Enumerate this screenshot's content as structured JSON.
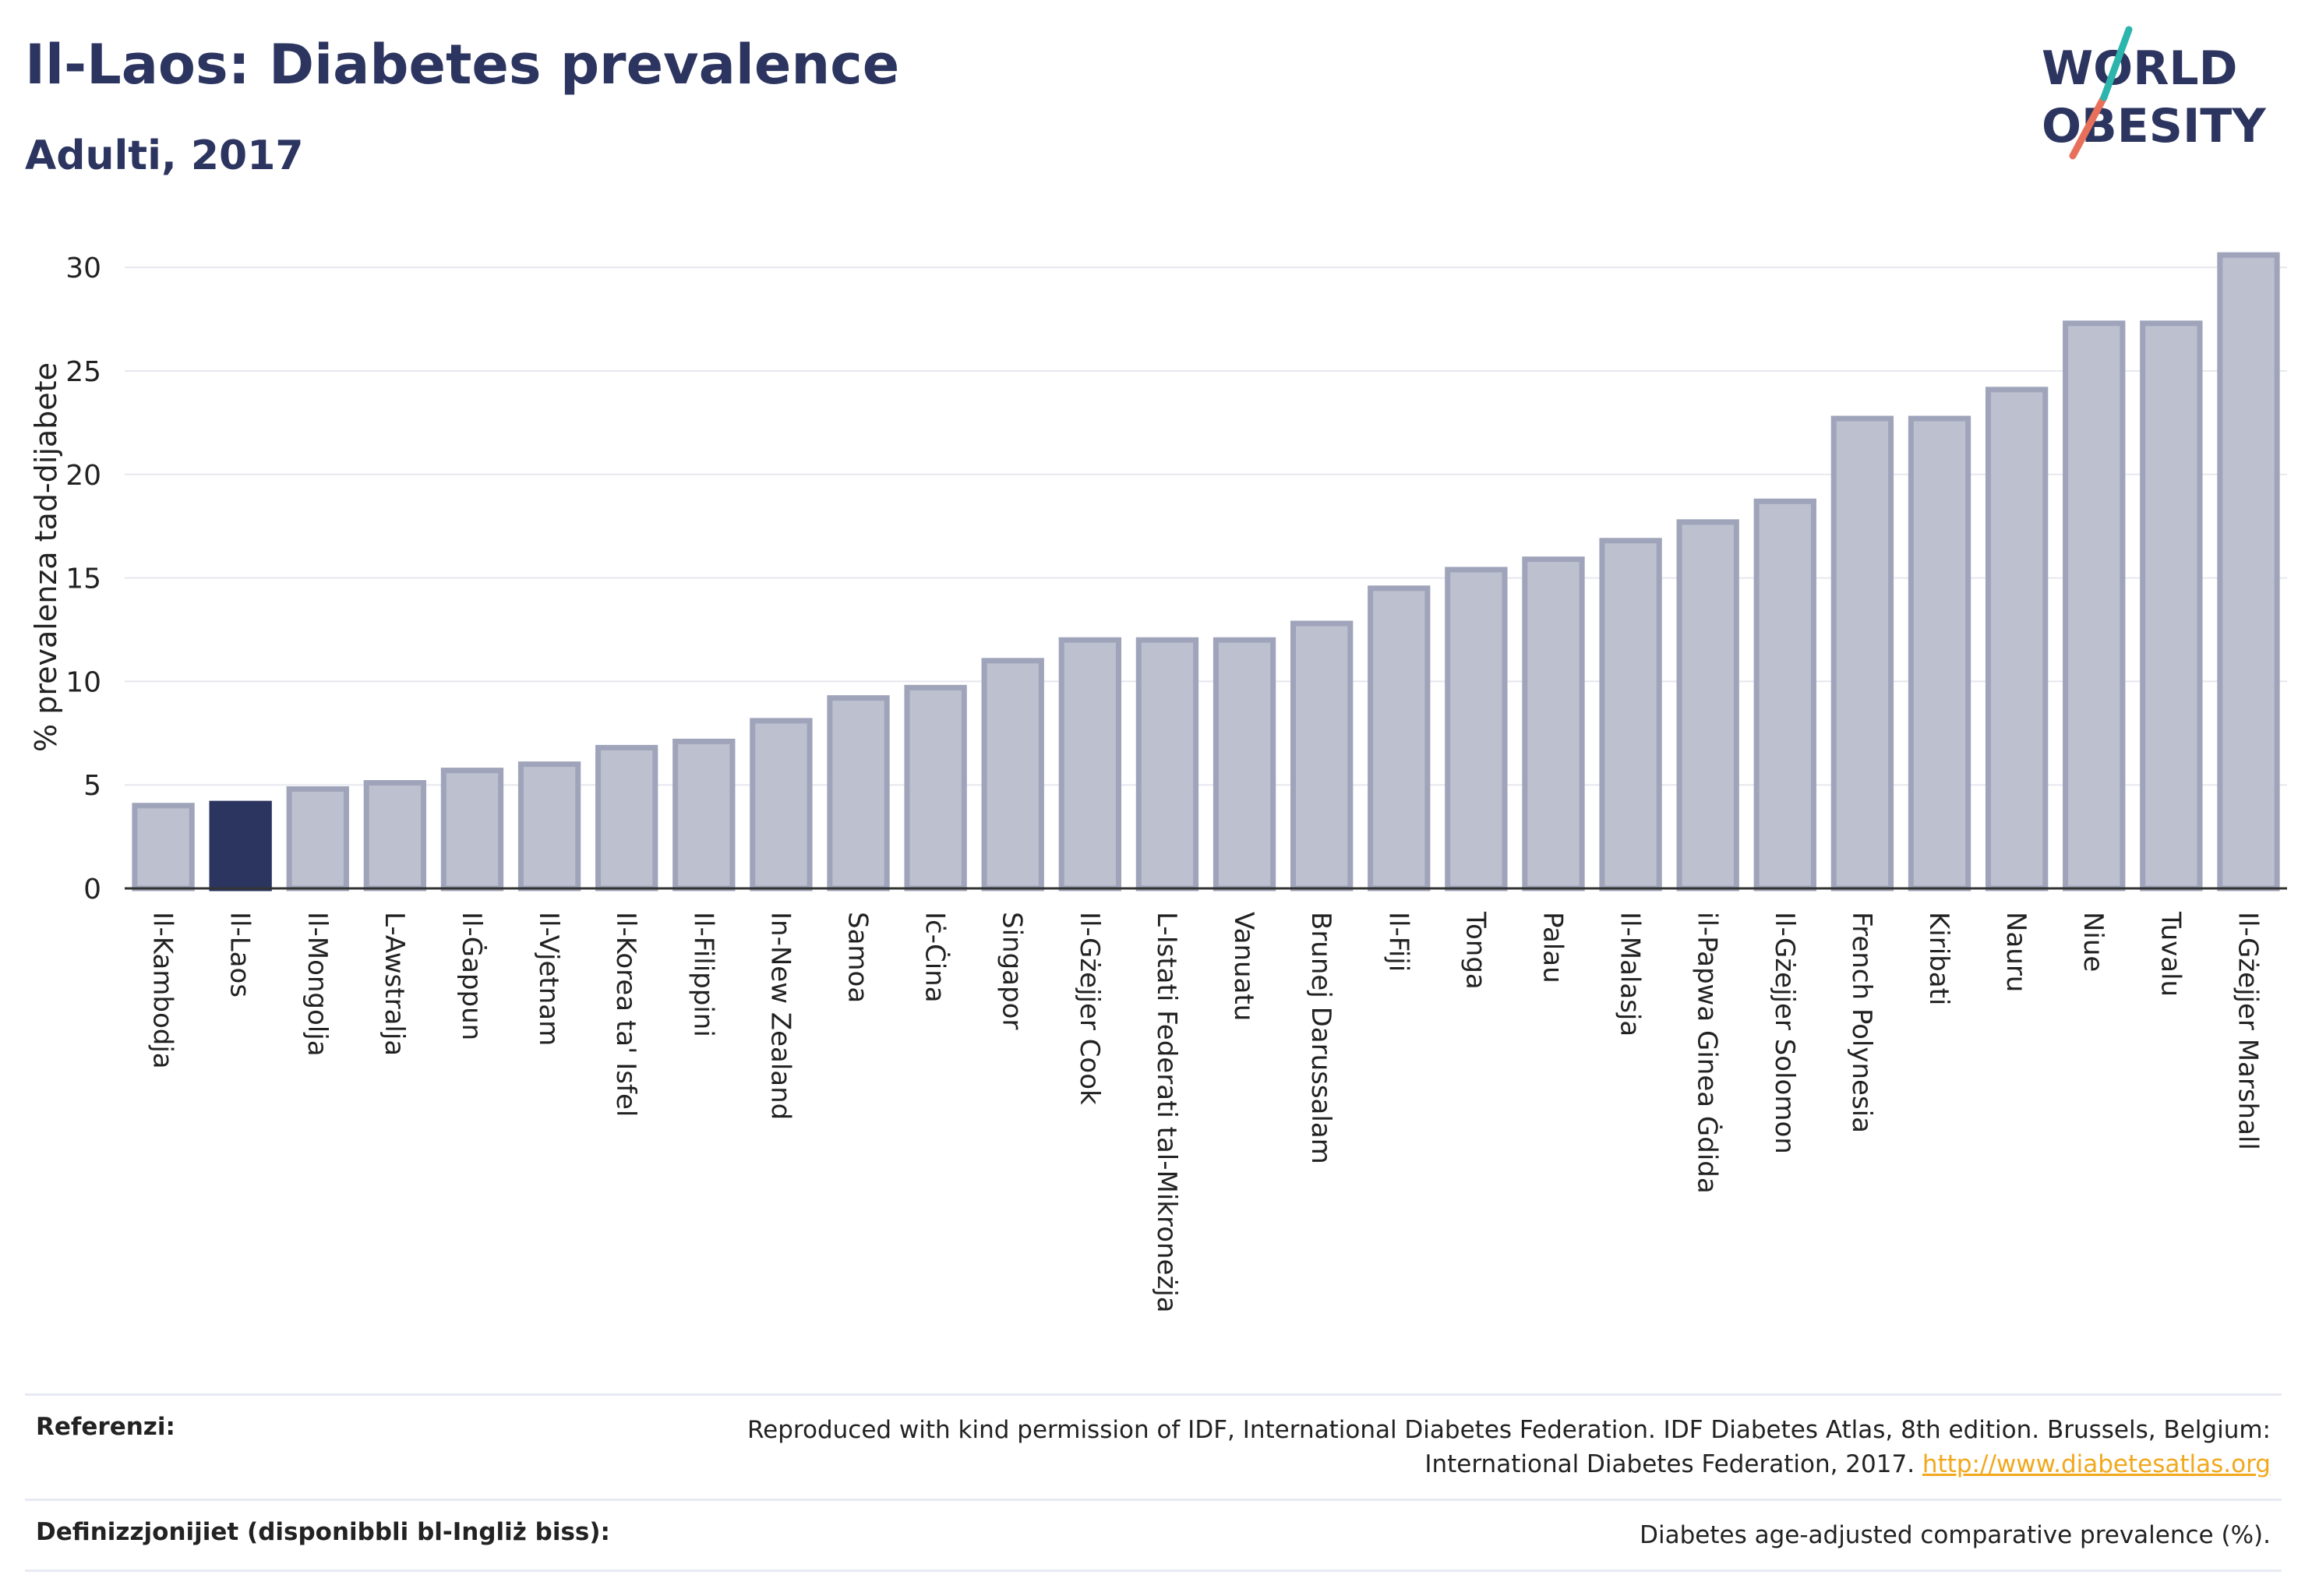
{
  "header": {
    "title": "Il-Laos: Diabetes prevalence",
    "subtitle": "Adulti, 2017"
  },
  "logo": {
    "line1": "WORLD",
    "line2": "OBESITY"
  },
  "colors": {
    "bar": "#bcc0cf",
    "bar_stroke": "#9fa4ba",
    "highlight": "#2c3560",
    "grid": "#e6e8ef",
    "axis": "#333333"
  },
  "chart_data": {
    "type": "bar",
    "title": "Il-Laos: Diabetes prevalence",
    "subtitle": "Adulti, 2017",
    "ylabel": "% prevalenza tad-dijabete",
    "xlabel": "",
    "ylim": [
      0,
      32
    ],
    "yticks": [
      0,
      5,
      10,
      15,
      20,
      25,
      30
    ],
    "grid": true,
    "highlight": "Il-Laos",
    "categories": [
      "Il-Kambodja",
      "Il-Laos",
      "Il-Mongolja",
      "L-Awstralja",
      "Il-Ġappun",
      "Il-Vjetnam",
      "Il-Korea ta' Isfel",
      "Il-Filippini",
      "In-New Zealand",
      "Samoa",
      "Iċ-Ċina",
      "Singapor",
      "Il-Gżejjer Cook",
      "L-Istati Federati tal-Mikroneżja",
      "Vanuatu",
      "Brunej Darussalam",
      "Il-Fiji",
      "Tonga",
      "Palau",
      "Il-Malasja",
      "il-Papwa Ginea Ġdida",
      "Il-Gżejjer Solomon",
      "French Polynesia",
      "Kiribati",
      "Nauru",
      "Niue",
      "Tuvalu",
      "Il-Gżejjer Marshall"
    ],
    "values": [
      4.0,
      4.1,
      4.8,
      5.1,
      5.7,
      6.0,
      6.8,
      7.1,
      8.1,
      9.2,
      9.7,
      11.0,
      12.0,
      12.0,
      12.0,
      12.8,
      14.5,
      15.4,
      15.9,
      16.8,
      17.7,
      18.7,
      22.7,
      22.7,
      24.1,
      27.3,
      27.3,
      30.6
    ]
  },
  "footer": {
    "references_key": "Referenzi:",
    "references_text": "Reproduced with kind permission of IDF, International Diabetes Federation. IDF Diabetes Atlas, 8th edition. Brussels, Belgium: International Diabetes Federation, 2017.",
    "references_link": "http://www.diabetesatlas.org",
    "definitions_key": "Definizzjonijiet (disponibbli bl-Ingliż biss):",
    "definitions_text": "Diabetes age-adjusted comparative prevalence (%)."
  }
}
